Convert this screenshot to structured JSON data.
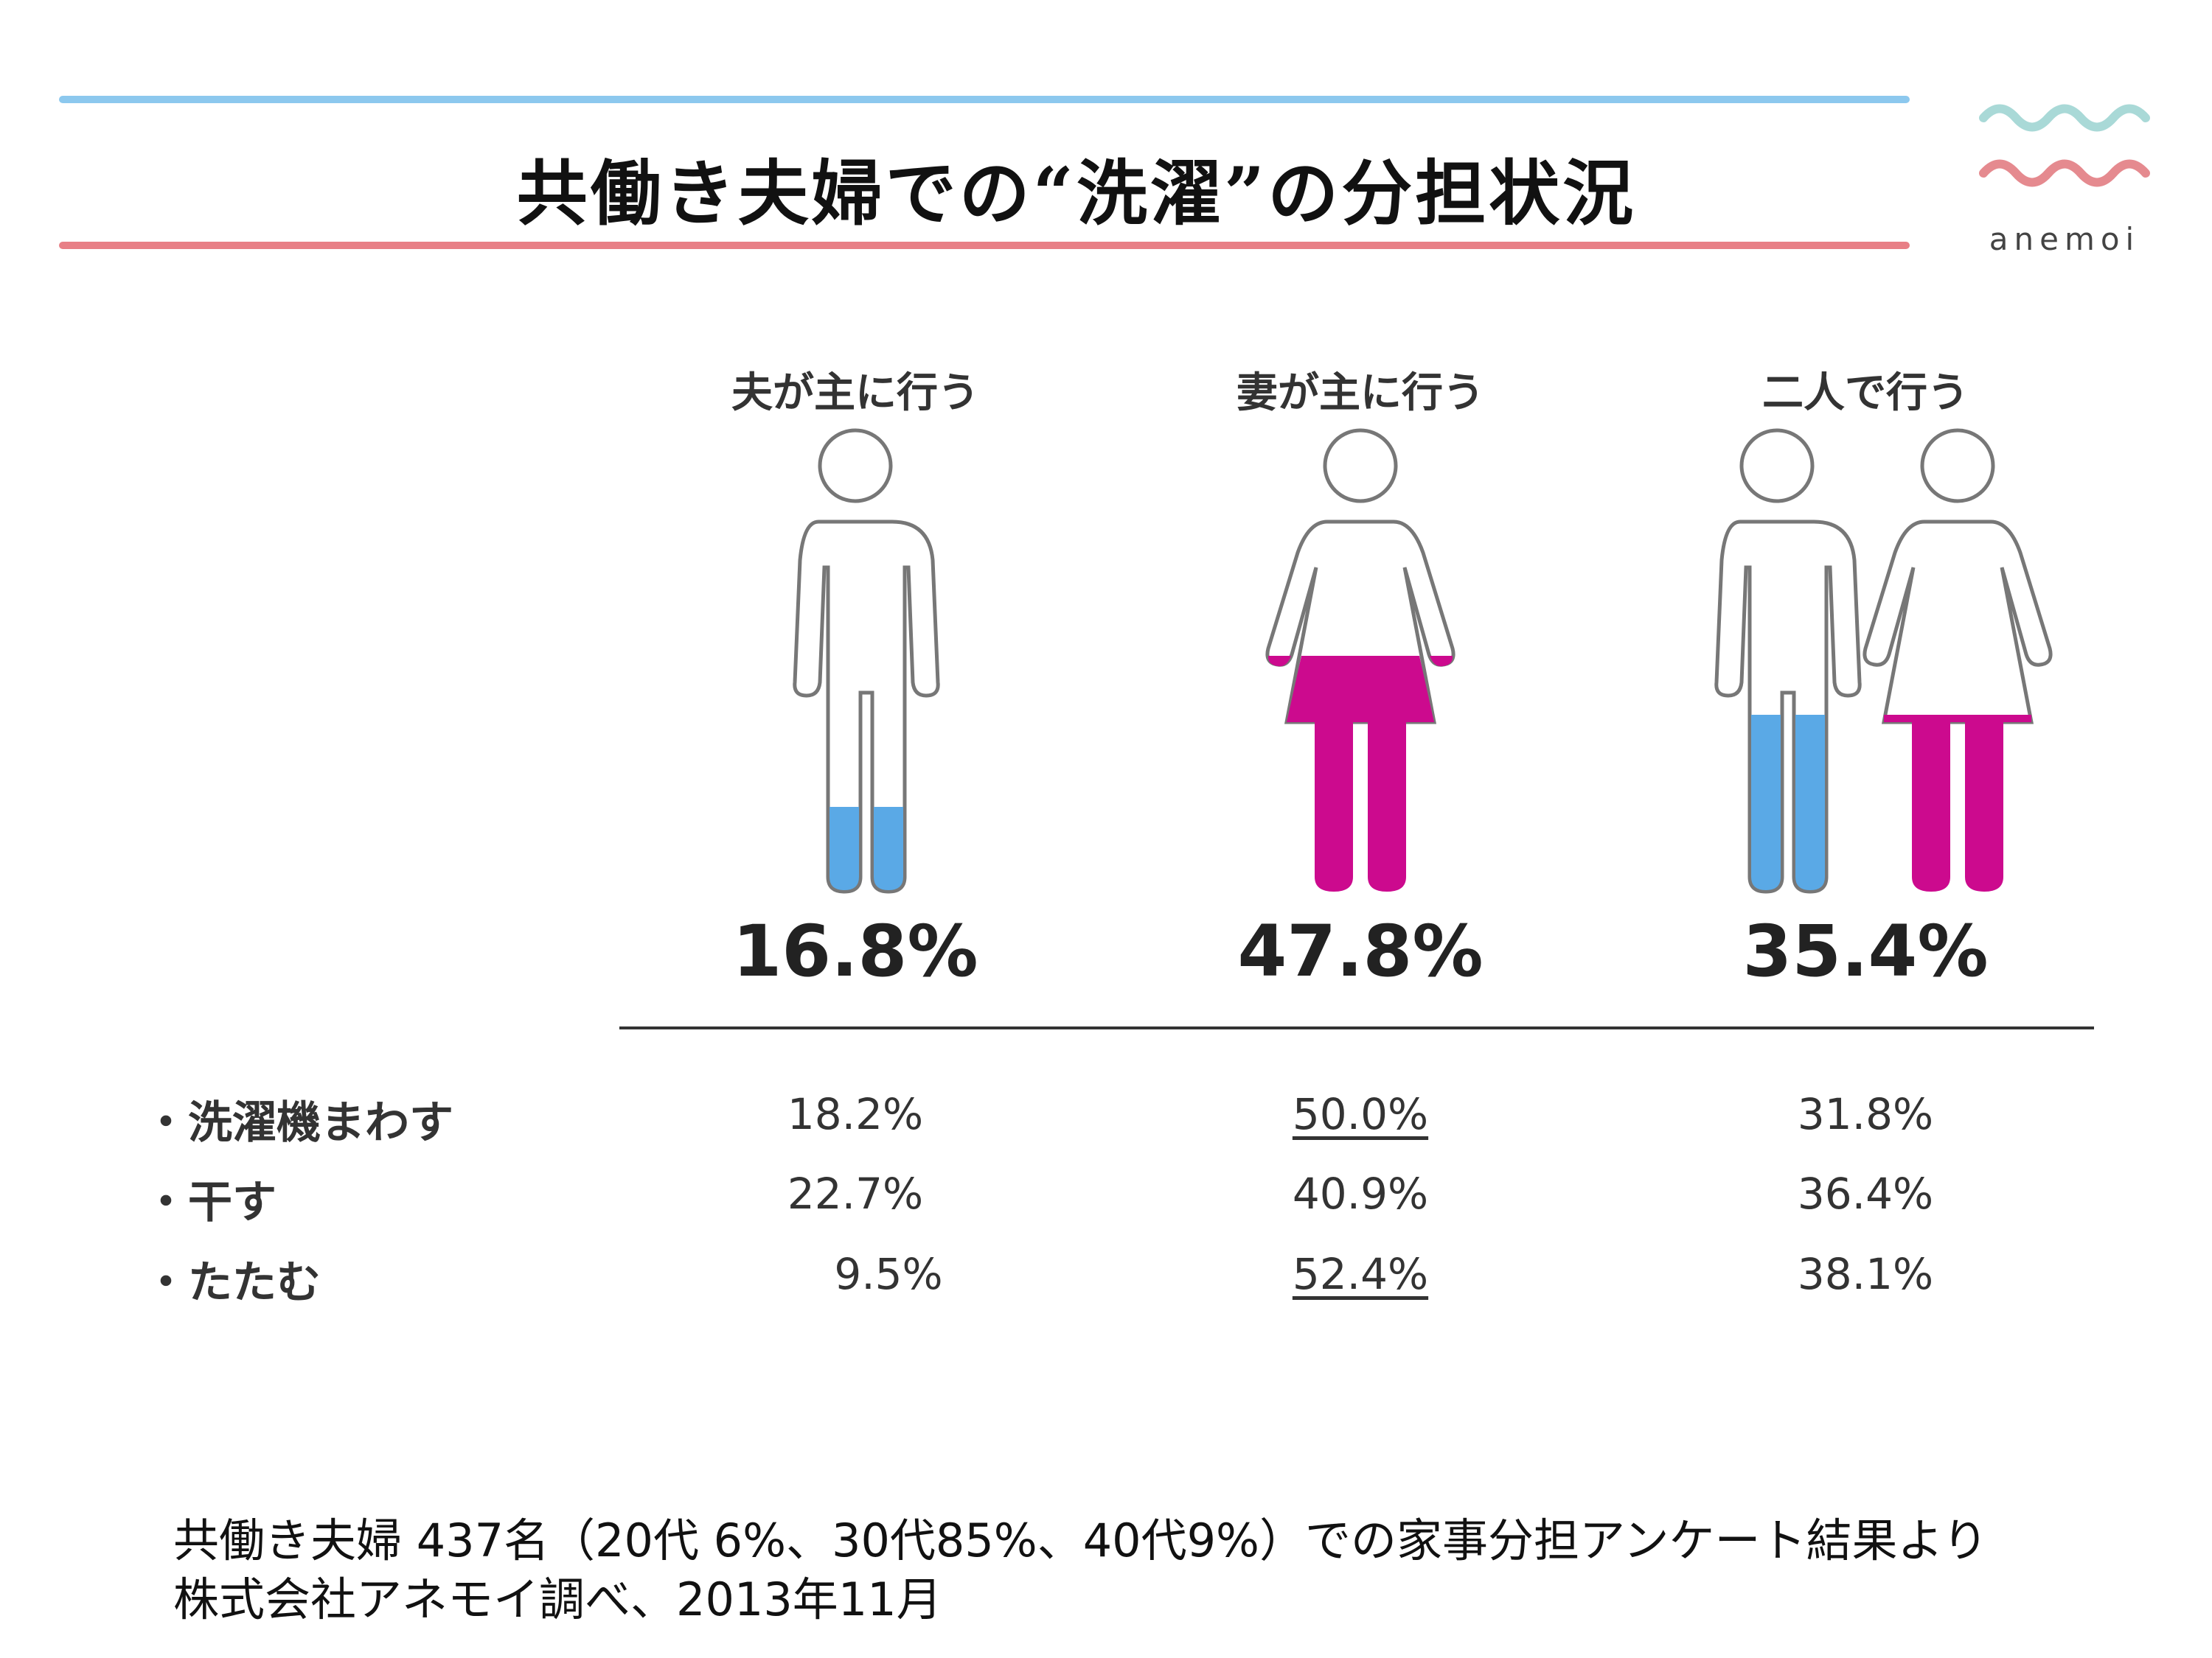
{
  "title": "共働き夫婦での“洗濯”の分担状況",
  "logo": {
    "text": "anemoi",
    "wave_top_color": "#a9d9d7",
    "wave_bottom_color": "#e58a8f"
  },
  "colors": {
    "accent_blue_line": "#8cc8ee",
    "accent_red_line": "#e87f86",
    "husband_fill": "#5aa9e6",
    "wife_fill": "#cc0a8e"
  },
  "chart_data": {
    "type": "table",
    "categories": [
      "夫が主に行う",
      "妻が主に行う",
      "二人で行う"
    ],
    "totals": [
      16.8,
      47.8,
      35.4
    ],
    "totals_labels": [
      "16.8%",
      "47.8%",
      "35.4%"
    ],
    "rows": [
      {
        "label": "・洗濯機まわす",
        "values": [
          "18.2%",
          "50.0%",
          "31.8%"
        ],
        "underlined": [
          false,
          true,
          false
        ]
      },
      {
        "label": "・干す",
        "values": [
          "22.7%",
          "40.9%",
          "36.4%"
        ],
        "underlined": [
          false,
          false,
          false
        ]
      },
      {
        "label": "・たたむ",
        "values": [
          "9.5%",
          "52.4%",
          "38.1%"
        ],
        "underlined": [
          false,
          true,
          false
        ]
      }
    ]
  },
  "notes": {
    "line1": "共働き夫婦 437名（20代 6%、30代85%、40代9%）での家事分担アンケート結果より",
    "line2": "株式会社アネモイ調べ、2013年11月"
  }
}
